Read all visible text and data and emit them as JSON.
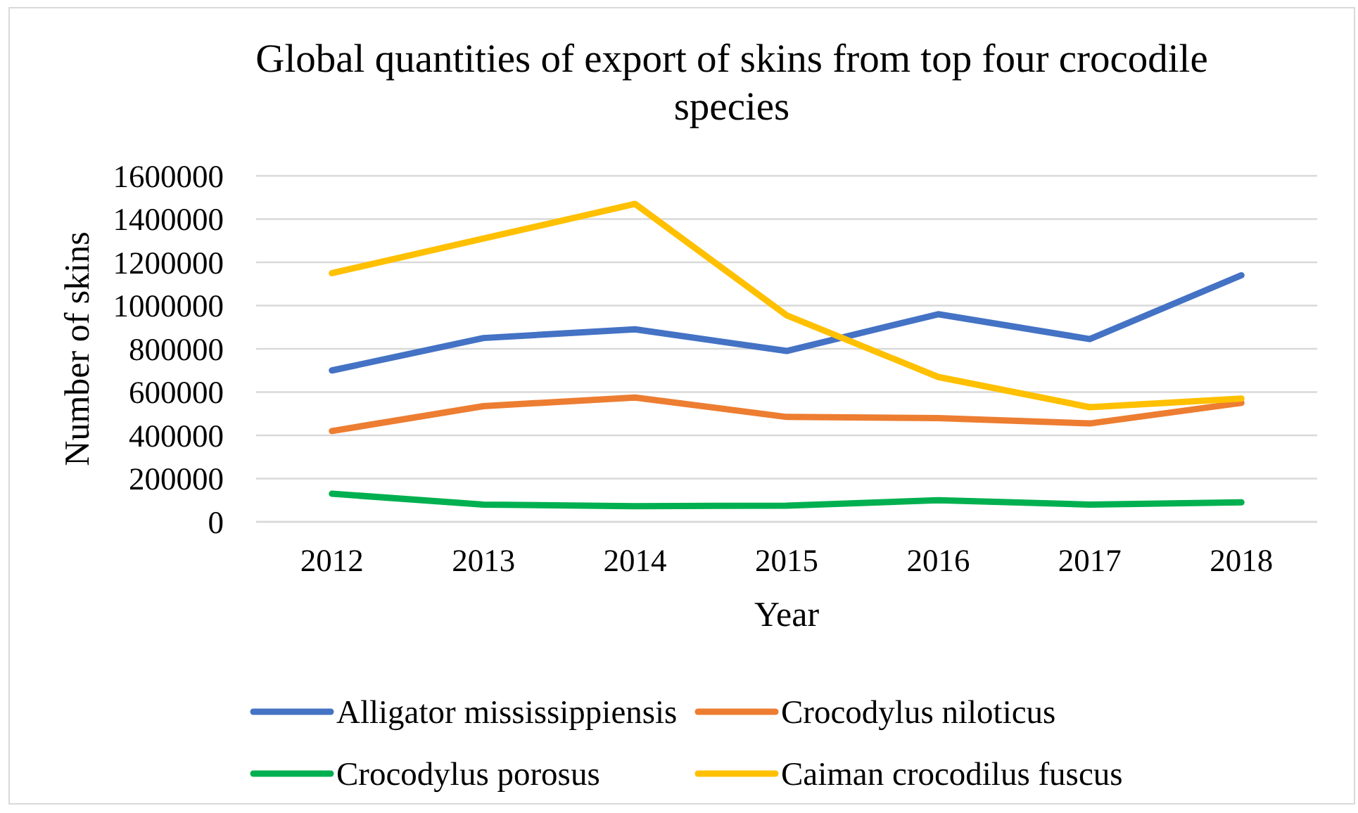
{
  "chart_data": {
    "type": "line",
    "title": "Global quantities of export of skins from top four crocodile species",
    "xlabel": "Year",
    "ylabel": "Number of skins",
    "categories": [
      "2012",
      "2013",
      "2014",
      "2015",
      "2016",
      "2017",
      "2018"
    ],
    "series": [
      {
        "name": "Alligator mississippiensis",
        "color": "#4472c4",
        "values": [
          700000,
          850000,
          890000,
          790000,
          960000,
          845000,
          1140000
        ]
      },
      {
        "name": "Crocodylus niloticus",
        "color": "#ed7d31",
        "values": [
          420000,
          535000,
          575000,
          485000,
          480000,
          455000,
          550000
        ]
      },
      {
        "name": "Crocodylus porosus",
        "color": "#00b050",
        "values": [
          130000,
          80000,
          72000,
          75000,
          100000,
          80000,
          90000
        ]
      },
      {
        "name": "Caiman crocodilus fuscus",
        "color": "#ffc000",
        "values": [
          1150000,
          1310000,
          1470000,
          955000,
          670000,
          530000,
          570000
        ]
      }
    ],
    "ylim": [
      0,
      1600000
    ],
    "yticks": [
      0,
      200000,
      400000,
      600000,
      800000,
      1000000,
      1200000,
      1400000,
      1600000
    ],
    "grid": "y",
    "legend": "bottom",
    "marker": "none",
    "line_style": "solid"
  }
}
